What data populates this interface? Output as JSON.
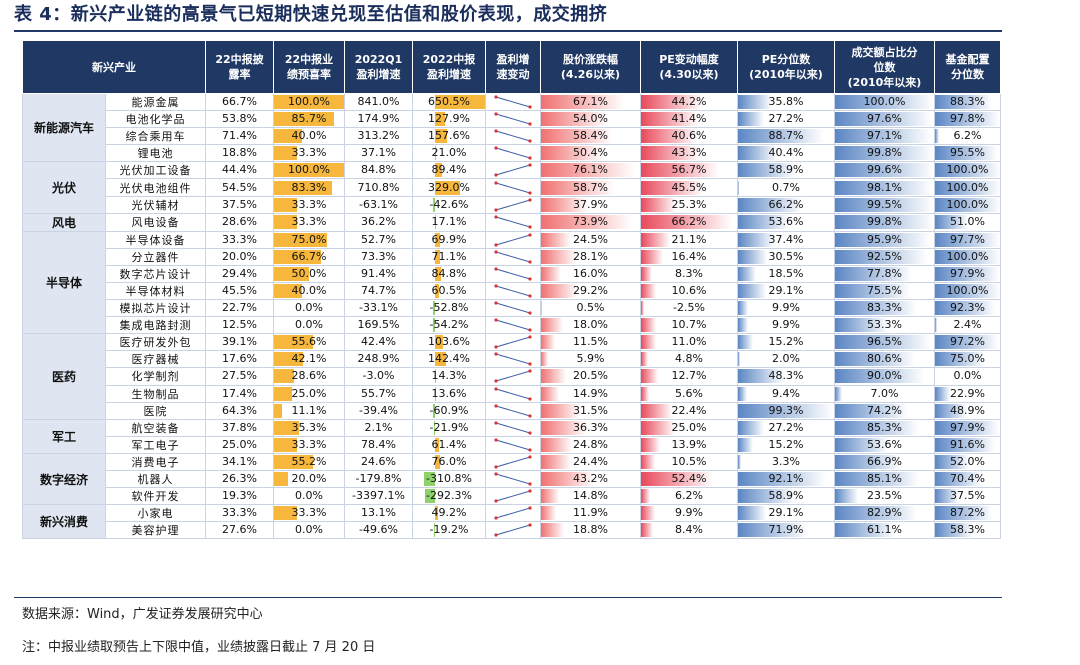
{
  "title": "表 4：新兴产业链的高景气已短期快速兑现至估值和股价表现，成交拥挤",
  "headers": [
    "新兴产业",
    "22中报披露率",
    "22中报业绩预喜率",
    "2022Q1盈利增速",
    "2022中报盈利增速",
    "盈利增速变动",
    "股价涨跌幅(4.26以来)",
    "PE变动幅度(4.30以来)",
    "PE分位数(2010年以来)",
    "成交额占比分位数(2010年以来)",
    "基金配置分位数"
  ],
  "header_lines": [
    [
      "新兴产业"
    ],
    [
      "22中报披",
      "露率"
    ],
    [
      "22中报业",
      "绩预喜率"
    ],
    [
      "2022Q1",
      "盈利增速"
    ],
    [
      "2022中报",
      "盈利增速"
    ],
    [
      "盈利增",
      "速变动"
    ],
    [
      "股价涨跌幅",
      "(4.26以来)"
    ],
    [
      "PE变动幅度",
      "(4.30以来)"
    ],
    [
      "PE分位数",
      "(2010年以来)"
    ],
    [
      "成交额占比分",
      "位数",
      "(2010年以来)"
    ],
    [
      "基金配置",
      "分位数"
    ]
  ],
  "groups": [
    {
      "name": "新能源汽车",
      "rows": [
        {
          "sub": "能源金属",
          "disc": "66.7%",
          "pre": "100.0%",
          "q1": "841.0%",
          "h1": "650.5%",
          "ret": "67.1%",
          "pe": "44.2%",
          "pepct": "35.8%",
          "turn": "100.0%",
          "fund": "88.3%"
        },
        {
          "sub": "电池化学品",
          "disc": "53.8%",
          "pre": "85.7%",
          "q1": "174.9%",
          "h1": "127.9%",
          "ret": "54.0%",
          "pe": "41.4%",
          "pepct": "27.2%",
          "turn": "97.6%",
          "fund": "97.8%"
        },
        {
          "sub": "综合乘用车",
          "disc": "71.4%",
          "pre": "40.0%",
          "q1": "313.2%",
          "h1": "157.6%",
          "ret": "58.4%",
          "pe": "40.6%",
          "pepct": "88.7%",
          "turn": "97.1%",
          "fund": "6.2%"
        },
        {
          "sub": "锂电池",
          "disc": "18.8%",
          "pre": "33.3%",
          "q1": "37.1%",
          "h1": "21.0%",
          "ret": "50.4%",
          "pe": "43.3%",
          "pepct": "40.4%",
          "turn": "99.8%",
          "fund": "95.5%"
        }
      ]
    },
    {
      "name": "光伏",
      "rows": [
        {
          "sub": "光伏加工设备",
          "disc": "44.4%",
          "pre": "100.0%",
          "q1": "84.8%",
          "h1": "89.4%",
          "ret": "76.1%",
          "pe": "56.7%",
          "pepct": "58.9%",
          "turn": "99.6%",
          "fund": "100.0%"
        },
        {
          "sub": "光伏电池组件",
          "disc": "54.5%",
          "pre": "83.3%",
          "q1": "710.8%",
          "h1": "329.0%",
          "ret": "58.7%",
          "pe": "45.5%",
          "pepct": "0.7%",
          "turn": "98.1%",
          "fund": "100.0%"
        },
        {
          "sub": "光伏辅材",
          "disc": "37.5%",
          "pre": "33.3%",
          "q1": "-63.1%",
          "h1": "-42.6%",
          "ret": "37.9%",
          "pe": "25.3%",
          "pepct": "66.2%",
          "turn": "99.5%",
          "fund": "100.0%"
        }
      ]
    },
    {
      "name": "风电",
      "rows": [
        {
          "sub": "风电设备",
          "disc": "28.6%",
          "pre": "33.3%",
          "q1": "36.2%",
          "h1": "17.1%",
          "ret": "73.9%",
          "pe": "66.2%",
          "pepct": "53.6%",
          "turn": "99.8%",
          "fund": "51.0%"
        }
      ]
    },
    {
      "name": "半导体",
      "rows": [
        {
          "sub": "半导体设备",
          "disc": "33.3%",
          "pre": "75.0%",
          "q1": "52.7%",
          "h1": "69.9%",
          "ret": "24.5%",
          "pe": "21.1%",
          "pepct": "37.4%",
          "turn": "95.9%",
          "fund": "97.7%"
        },
        {
          "sub": "分立器件",
          "disc": "20.0%",
          "pre": "66.7%",
          "q1": "73.3%",
          "h1": "71.1%",
          "ret": "28.1%",
          "pe": "16.4%",
          "pepct": "30.5%",
          "turn": "92.5%",
          "fund": "100.0%"
        },
        {
          "sub": "数字芯片设计",
          "disc": "29.4%",
          "pre": "50.0%",
          "q1": "91.4%",
          "h1": "84.8%",
          "ret": "16.0%",
          "pe": "8.3%",
          "pepct": "18.5%",
          "turn": "77.8%",
          "fund": "97.9%"
        },
        {
          "sub": "半导体材料",
          "disc": "45.5%",
          "pre": "40.0%",
          "q1": "74.7%",
          "h1": "60.5%",
          "ret": "29.2%",
          "pe": "10.6%",
          "pepct": "29.1%",
          "turn": "75.5%",
          "fund": "100.0%"
        },
        {
          "sub": "模拟芯片设计",
          "disc": "22.7%",
          "pre": "0.0%",
          "q1": "-33.1%",
          "h1": "-52.8%",
          "ret": "0.5%",
          "pe": "-2.5%",
          "pepct": "9.9%",
          "turn": "83.3%",
          "fund": "92.3%"
        },
        {
          "sub": "集成电路封测",
          "disc": "12.5%",
          "pre": "0.0%",
          "q1": "169.5%",
          "h1": "-54.2%",
          "ret": "18.0%",
          "pe": "10.7%",
          "pepct": "9.9%",
          "turn": "53.3%",
          "fund": "2.4%"
        }
      ]
    },
    {
      "name": "医药",
      "rows": [
        {
          "sub": "医疗研发外包",
          "disc": "39.1%",
          "pre": "55.6%",
          "q1": "42.4%",
          "h1": "103.6%",
          "ret": "11.5%",
          "pe": "11.0%",
          "pepct": "15.2%",
          "turn": "96.5%",
          "fund": "97.2%"
        },
        {
          "sub": "医疗器械",
          "disc": "17.6%",
          "pre": "42.1%",
          "q1": "248.9%",
          "h1": "142.4%",
          "ret": "5.9%",
          "pe": "4.8%",
          "pepct": "2.0%",
          "turn": "80.6%",
          "fund": "75.0%"
        },
        {
          "sub": "化学制剂",
          "disc": "27.5%",
          "pre": "28.6%",
          "q1": "-3.0%",
          "h1": "14.3%",
          "ret": "20.5%",
          "pe": "12.7%",
          "pepct": "48.3%",
          "turn": "90.0%",
          "fund": "0.0%"
        },
        {
          "sub": "生物制品",
          "disc": "17.4%",
          "pre": "25.0%",
          "q1": "55.7%",
          "h1": "13.6%",
          "ret": "14.9%",
          "pe": "5.6%",
          "pepct": "9.4%",
          "turn": "7.0%",
          "fund": "22.9%"
        },
        {
          "sub": "医院",
          "disc": "64.3%",
          "pre": "11.1%",
          "q1": "-39.4%",
          "h1": "-60.9%",
          "ret": "31.5%",
          "pe": "22.4%",
          "pepct": "99.3%",
          "turn": "74.2%",
          "fund": "48.9%"
        }
      ]
    },
    {
      "name": "军工",
      "rows": [
        {
          "sub": "航空装备",
          "disc": "37.8%",
          "pre": "35.3%",
          "q1": "2.1%",
          "h1": "-21.9%",
          "ret": "36.3%",
          "pe": "25.0%",
          "pepct": "27.2%",
          "turn": "85.3%",
          "fund": "97.9%"
        },
        {
          "sub": "军工电子",
          "disc": "25.0%",
          "pre": "33.3%",
          "q1": "78.4%",
          "h1": "61.4%",
          "ret": "24.8%",
          "pe": "13.9%",
          "pepct": "15.2%",
          "turn": "53.6%",
          "fund": "91.6%"
        }
      ]
    },
    {
      "name": "数字经济",
      "rows": [
        {
          "sub": "消费电子",
          "disc": "34.1%",
          "pre": "55.2%",
          "q1": "24.6%",
          "h1": "76.0%",
          "ret": "24.4%",
          "pe": "10.5%",
          "pepct": "3.3%",
          "turn": "66.9%",
          "fund": "52.0%"
        },
        {
          "sub": "机器人",
          "disc": "26.3%",
          "pre": "20.0%",
          "q1": "-179.8%",
          "h1": "-310.8%",
          "ret": "43.2%",
          "pe": "52.4%",
          "pepct": "92.1%",
          "turn": "85.1%",
          "fund": "70.4%"
        },
        {
          "sub": "软件开发",
          "disc": "19.3%",
          "pre": "0.0%",
          "q1": "-3397.1%",
          "h1": "-292.3%",
          "ret": "14.8%",
          "pe": "6.2%",
          "pepct": "58.9%",
          "turn": "23.5%",
          "fund": "37.5%"
        }
      ]
    },
    {
      "name": "新兴消费",
      "rows": [
        {
          "sub": "小家电",
          "disc": "33.3%",
          "pre": "33.3%",
          "q1": "13.1%",
          "h1": "49.2%",
          "ret": "11.9%",
          "pe": "9.9%",
          "pepct": "29.1%",
          "turn": "82.9%",
          "fund": "87.2%"
        },
        {
          "sub": "美容护理",
          "disc": "27.6%",
          "pre": "0.0%",
          "q1": "-49.6%",
          "h1": "-19.2%",
          "ret": "18.8%",
          "pe": "8.4%",
          "pepct": "71.9%",
          "turn": "61.1%",
          "fund": "58.3%"
        }
      ]
    }
  ],
  "source_note": "数据来源：Wind，广发证券发展研究中心",
  "footnote": "注：中报业绩取预告上下限中值，业绩披露日截止 7 月 20 日",
  "colors": {
    "header_bg": "#1f3864",
    "preview_bar": "#f6b73c",
    "h1_pos_bar": "#f6b73c",
    "h1_neg_bar": "#8fd16a",
    "ret_bar": "#f07070",
    "pe_bar": "#e8495b",
    "pepct_bar": "#5b86c4",
    "turn_bar": "#5b86c4",
    "fund_bar": "#5b86c4",
    "spark_line": "#3d5fa6",
    "spark_dot": "#d33"
  }
}
